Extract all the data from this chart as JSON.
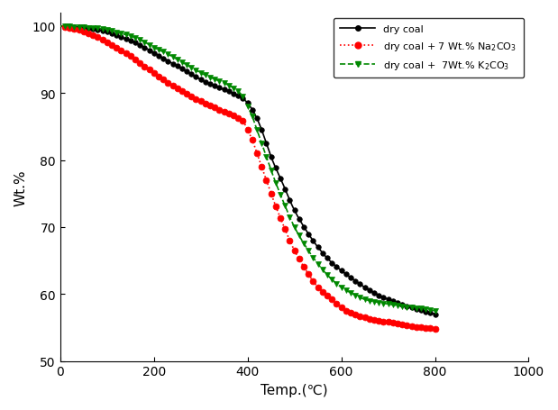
{
  "title": "",
  "xlabel": "Temp.(℃)",
  "ylabel": "Wt.%",
  "xlim": [
    0,
    1000
  ],
  "ylim": [
    50,
    102
  ],
  "yticks": [
    50,
    60,
    70,
    80,
    90,
    100
  ],
  "xticks": [
    0,
    200,
    400,
    600,
    800,
    1000
  ],
  "legend": [
    {
      "label": "dry coal",
      "color": "#000000",
      "linestyle": "-",
      "marker": "o",
      "markerfacecolor": "#000000",
      "markersize": 4
    },
    {
      "label": "dry coal + 7 Wt.% Na$_2$CO$_3$",
      "color": "#ff0000",
      "linestyle": ":",
      "marker": "o",
      "markerfacecolor": "#ff0000",
      "markersize": 5
    },
    {
      "label": "dry coal +  7Wt.% K$_2$CO$_3$",
      "color": "#008800",
      "linestyle": "--",
      "marker": "v",
      "markerfacecolor": "#008800",
      "markersize": 5
    }
  ],
  "figsize": [
    6.19,
    4.56
  ],
  "dpi": 100,
  "curve1_t": [
    0,
    25,
    50,
    75,
    100,
    125,
    150,
    175,
    200,
    225,
    250,
    275,
    300,
    325,
    350,
    375,
    390,
    400,
    410,
    420,
    430,
    440,
    450,
    475,
    500,
    525,
    550,
    575,
    600,
    625,
    650,
    675,
    700,
    725,
    750,
    775,
    800
  ],
  "curve1_w": [
    100,
    99.9,
    99.8,
    99.5,
    99.2,
    98.5,
    97.8,
    97.0,
    96.0,
    95.0,
    94.0,
    93.0,
    92.0,
    91.2,
    90.5,
    89.8,
    89.2,
    88.5,
    87.5,
    86.2,
    84.5,
    82.5,
    80.5,
    76.5,
    72.5,
    69.5,
    67.0,
    65.0,
    63.5,
    62.2,
    61.0,
    60.0,
    59.2,
    58.5,
    58.0,
    57.5,
    57.0
  ],
  "curve2_t": [
    0,
    25,
    50,
    75,
    100,
    125,
    150,
    175,
    200,
    225,
    250,
    275,
    300,
    325,
    350,
    375,
    390,
    400,
    410,
    420,
    430,
    440,
    450,
    475,
    500,
    525,
    550,
    575,
    600,
    625,
    650,
    675,
    700,
    725,
    750,
    775,
    800
  ],
  "curve2_w": [
    100,
    99.7,
    99.2,
    98.5,
    97.5,
    96.5,
    95.5,
    94.2,
    93.0,
    91.8,
    90.7,
    89.7,
    88.8,
    88.0,
    87.2,
    86.5,
    85.8,
    84.5,
    83.0,
    81.0,
    79.0,
    77.0,
    75.0,
    70.5,
    66.5,
    63.5,
    61.0,
    59.5,
    58.0,
    57.0,
    56.5,
    56.0,
    55.8,
    55.5,
    55.2,
    55.0,
    54.8
  ],
  "curve3_t": [
    0,
    25,
    50,
    75,
    100,
    125,
    150,
    175,
    200,
    225,
    250,
    275,
    300,
    325,
    350,
    375,
    390,
    400,
    410,
    420,
    430,
    440,
    450,
    475,
    500,
    525,
    550,
    575,
    600,
    625,
    650,
    675,
    700,
    725,
    750,
    775,
    800
  ],
  "curve3_w": [
    100,
    99.9,
    99.8,
    99.7,
    99.5,
    99.0,
    98.5,
    97.8,
    96.8,
    96.0,
    95.0,
    94.0,
    93.0,
    92.2,
    91.5,
    90.5,
    89.5,
    88.0,
    86.5,
    84.5,
    82.5,
    80.5,
    78.5,
    74.0,
    70.0,
    67.0,
    64.5,
    62.5,
    61.0,
    60.0,
    59.2,
    58.8,
    58.5,
    58.2,
    58.0,
    57.8,
    57.5
  ]
}
